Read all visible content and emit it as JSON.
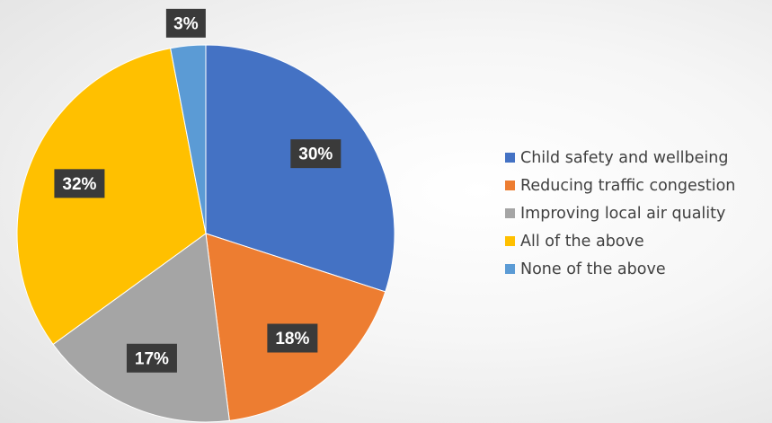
{
  "chart_data": {
    "type": "pie",
    "categories": [
      "Child safety and wellbeing",
      "Reducing traffic congestion",
      "Improving local air quality",
      "All of the above",
      "None of the above"
    ],
    "values": [
      30,
      18,
      17,
      32,
      3
    ],
    "data_labels": [
      "30%",
      "18%",
      "17%",
      "32%",
      "3%"
    ],
    "colors": [
      "#4472C4",
      "#ED7D31",
      "#A5A5A5",
      "#FFC000",
      "#5B9BD5"
    ],
    "legend_position": "right"
  }
}
